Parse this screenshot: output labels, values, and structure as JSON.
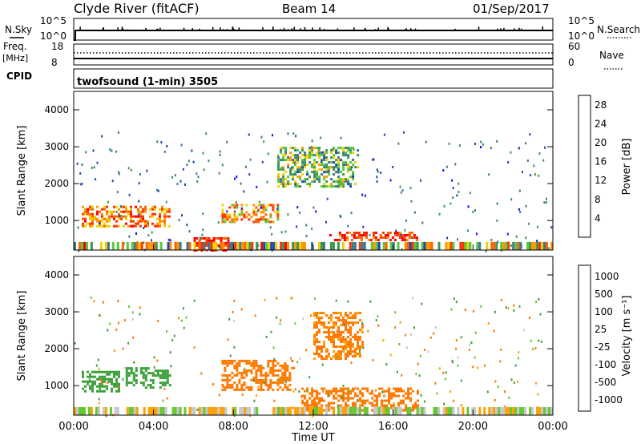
{
  "header": {
    "station": "Clyde River (fitACF)",
    "beam": "Beam 14",
    "date": "01/Sep/2017"
  },
  "panels": {
    "nsky": {
      "left_label": "N.Sky",
      "right_label": "N.Search",
      "tick_top": "10^5",
      "tick_bottom": "10^0"
    },
    "freq": {
      "left_label": "Freq.",
      "unit": "[MHz]",
      "tick_top": "18",
      "tick_bottom": "8",
      "right_label": "Nave",
      "right_tick_top": "60",
      "right_tick_bottom": "0"
    },
    "cpid": {
      "left_label": "CPID",
      "program": "twofsound (1-min) 3505"
    }
  },
  "colors": {
    "power": [
      "#1010ff",
      "#1e46b4",
      "#3c7890",
      "#3c9650",
      "#58c83c",
      "#f0d200",
      "#ff9600",
      "#ff6400",
      "#ff3200",
      "#ff0000"
    ],
    "velocity": [
      "#ff0000",
      "#ff4000",
      "#ff7800",
      "#ffa000",
      "#ffd700",
      "#c8c8c8",
      "#64c832",
      "#3ca03c",
      "#328c78",
      "#1e4b96",
      "#1e3cc8"
    ]
  },
  "chart_data": [
    {
      "type": "heatmap",
      "name": "power",
      "ylabel": "Slant Range [km]",
      "yticks": [
        "1000",
        "2000",
        "3000",
        "4000"
      ],
      "ylim": [
        200,
        4500
      ],
      "xticks": [
        "00:00",
        "04:00",
        "08:00",
        "12:00",
        "16:00",
        "20:00",
        "00:00"
      ],
      "xlim_hours": [
        0,
        24
      ],
      "colorbar": {
        "label": "Power [dB]",
        "ticks": [
          "4",
          "8",
          "12",
          "16",
          "20",
          "24",
          "28"
        ],
        "range": [
          0,
          30
        ]
      },
      "regions": [
        {
          "t0": 0.4,
          "t1": 4.8,
          "r0": 850,
          "r1": 1400,
          "level": 22
        },
        {
          "t0": 7.4,
          "t1": 10.2,
          "r0": 950,
          "r1": 1450,
          "level": 20
        },
        {
          "t0": 12.8,
          "t1": 17.2,
          "r0": 450,
          "r1": 700,
          "level": 26
        },
        {
          "t0": 6.0,
          "t1": 7.8,
          "r0": 200,
          "r1": 550,
          "level": 28
        },
        {
          "t0": 10.2,
          "t1": 14.2,
          "r0": 1900,
          "r1": 3000,
          "level": 12
        }
      ]
    },
    {
      "type": "heatmap",
      "name": "velocity",
      "ylabel": "Slant Range [km]",
      "yticks": [
        "1000",
        "2000",
        "3000",
        "4000"
      ],
      "ylim": [
        200,
        4500
      ],
      "xticks": [
        "00:00",
        "04:00",
        "08:00",
        "12:00",
        "16:00",
        "20:00",
        "00:00"
      ],
      "xlabel": "Time UT",
      "xlim_hours": [
        0,
        24
      ],
      "colorbar": {
        "label": "Velocity [m s⁻¹]",
        "ticks": [
          "1000",
          "500",
          "100",
          "25",
          "-25",
          "-100",
          "-500",
          "-1000"
        ]
      },
      "regions": [
        {
          "t0": 0.4,
          "t1": 2.3,
          "r0": 850,
          "r1": 1400,
          "level": 300
        },
        {
          "t0": 2.6,
          "t1": 4.8,
          "r0": 950,
          "r1": 1500,
          "level": 300
        },
        {
          "t0": 7.4,
          "t1": 11.0,
          "r0": 900,
          "r1": 1700,
          "level": -250
        },
        {
          "t0": 11.4,
          "t1": 17.2,
          "r0": 300,
          "r1": 950,
          "level": -250
        },
        {
          "t0": 12.0,
          "t1": 14.5,
          "r0": 1700,
          "r1": 3000,
          "level": -150
        }
      ]
    }
  ]
}
